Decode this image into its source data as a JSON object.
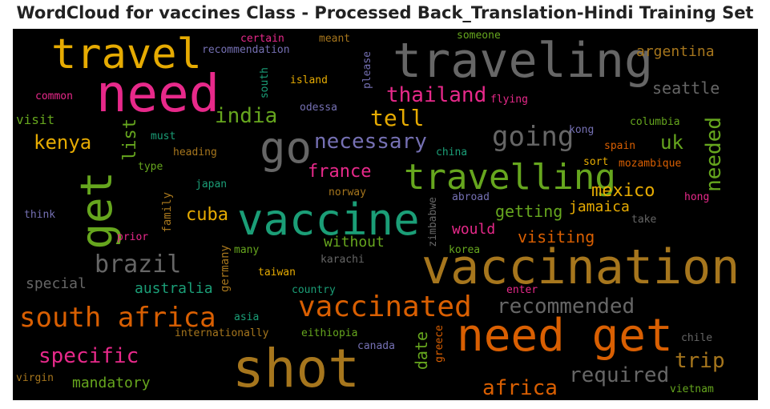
{
  "title": "WordCloud for vaccines Class - Processed Back_Translation-Hindi Training Set",
  "words": [
    {
      "text": "travel",
      "color": "#e6ab02"
    },
    {
      "text": "need",
      "color": "#e7298a"
    },
    {
      "text": "traveling",
      "color": "#666666"
    },
    {
      "text": "go",
      "color": "#666666"
    },
    {
      "text": "get",
      "color": "#66a61e"
    },
    {
      "text": "vaccine",
      "color": "#1b9e77"
    },
    {
      "text": "travelling",
      "color": "#66a61e"
    },
    {
      "text": "vaccination",
      "color": "#a6761d"
    },
    {
      "text": "shot",
      "color": "#a6761d"
    },
    {
      "text": "need get",
      "color": "#d95f02"
    },
    {
      "text": "vaccinated",
      "color": "#d95f02"
    },
    {
      "text": "south africa",
      "color": "#d95f02"
    },
    {
      "text": "brazil",
      "color": "#666666"
    },
    {
      "text": "necessary",
      "color": "#7570b3"
    },
    {
      "text": "going",
      "color": "#666666"
    },
    {
      "text": "thailand",
      "color": "#e7298a"
    },
    {
      "text": "tell",
      "color": "#e6ab02"
    },
    {
      "text": "india",
      "color": "#66a61e"
    },
    {
      "text": "kenya",
      "color": "#e6ab02"
    },
    {
      "text": "specific",
      "color": "#e7298a"
    },
    {
      "text": "recommended",
      "color": "#666666"
    },
    {
      "text": "required",
      "color": "#666666"
    },
    {
      "text": "africa",
      "color": "#d95f02"
    },
    {
      "text": "trip",
      "color": "#a6761d"
    },
    {
      "text": "argentina",
      "color": "#a6761d"
    },
    {
      "text": "seattle",
      "color": "#666666"
    },
    {
      "text": "needed",
      "color": "#66a61e"
    },
    {
      "text": "uk",
      "color": "#66a61e"
    },
    {
      "text": "mexico",
      "color": "#e6ab02"
    },
    {
      "text": "jamaica",
      "color": "#e6ab02"
    },
    {
      "text": "getting",
      "color": "#66a61e"
    },
    {
      "text": "visiting",
      "color": "#d95f02"
    },
    {
      "text": "would",
      "color": "#e7298a"
    },
    {
      "text": "france",
      "color": "#e7298a"
    },
    {
      "text": "cuba",
      "color": "#e6ab02"
    },
    {
      "text": "list",
      "color": "#66a61e"
    },
    {
      "text": "australia",
      "color": "#1b9e77"
    },
    {
      "text": "special",
      "color": "#666666"
    },
    {
      "text": "mandatory",
      "color": "#66a61e"
    },
    {
      "text": "date",
      "color": "#66a61e"
    },
    {
      "text": "without",
      "color": "#66a61e"
    },
    {
      "text": "visit",
      "color": "#66a61e"
    },
    {
      "text": "certain",
      "color": "#e7298a"
    },
    {
      "text": "meant",
      "color": "#a6761d"
    },
    {
      "text": "someone",
      "color": "#66a61e"
    },
    {
      "text": "recommendation",
      "color": "#7570b3"
    },
    {
      "text": "please",
      "color": "#7570b3"
    },
    {
      "text": "island",
      "color": "#e6ab02"
    },
    {
      "text": "south",
      "color": "#1b9e77"
    },
    {
      "text": "common",
      "color": "#e7298a"
    },
    {
      "text": "odessa",
      "color": "#7570b3"
    },
    {
      "text": "flying",
      "color": "#e7298a"
    },
    {
      "text": "must",
      "color": "#1b9e77"
    },
    {
      "text": "kong",
      "color": "#7570b3"
    },
    {
      "text": "columbia",
      "color": "#66a61e"
    },
    {
      "text": "heading",
      "color": "#a6761d"
    },
    {
      "text": "china",
      "color": "#1b9e77"
    },
    {
      "text": "spain",
      "color": "#d95f02"
    },
    {
      "text": "sort",
      "color": "#e6ab02"
    },
    {
      "text": "mozambique",
      "color": "#d95f02"
    },
    {
      "text": "type",
      "color": "#66a61e"
    },
    {
      "text": "japan",
      "color": "#1b9e77"
    },
    {
      "text": "family",
      "color": "#a6761d"
    },
    {
      "text": "norway",
      "color": "#a6761d"
    },
    {
      "text": "zimbabwe",
      "color": "#666666"
    },
    {
      "text": "abroad",
      "color": "#7570b3"
    },
    {
      "text": "hong",
      "color": "#e7298a"
    },
    {
      "text": "think",
      "color": "#7570b3"
    },
    {
      "text": "prior",
      "color": "#e7298a"
    },
    {
      "text": "take",
      "color": "#666666"
    },
    {
      "text": "korea",
      "color": "#66a61e"
    },
    {
      "text": "many",
      "color": "#66a61e"
    },
    {
      "text": "germany",
      "color": "#a6761d"
    },
    {
      "text": "karachi",
      "color": "#666666"
    },
    {
      "text": "taiwan",
      "color": "#e6ab02"
    },
    {
      "text": "country",
      "color": "#1b9e77"
    },
    {
      "text": "enter",
      "color": "#e7298a"
    },
    {
      "text": "asia",
      "color": "#1b9e77"
    },
    {
      "text": "internationally",
      "color": "#a6761d"
    },
    {
      "text": "eithiopia",
      "color": "#66a61e"
    },
    {
      "text": "canada",
      "color": "#7570b3"
    },
    {
      "text": "greece",
      "color": "#d95f02"
    },
    {
      "text": "chile",
      "color": "#666666"
    },
    {
      "text": "virgin",
      "color": "#a6761d"
    },
    {
      "text": "vietnam",
      "color": "#66a61e"
    }
  ]
}
